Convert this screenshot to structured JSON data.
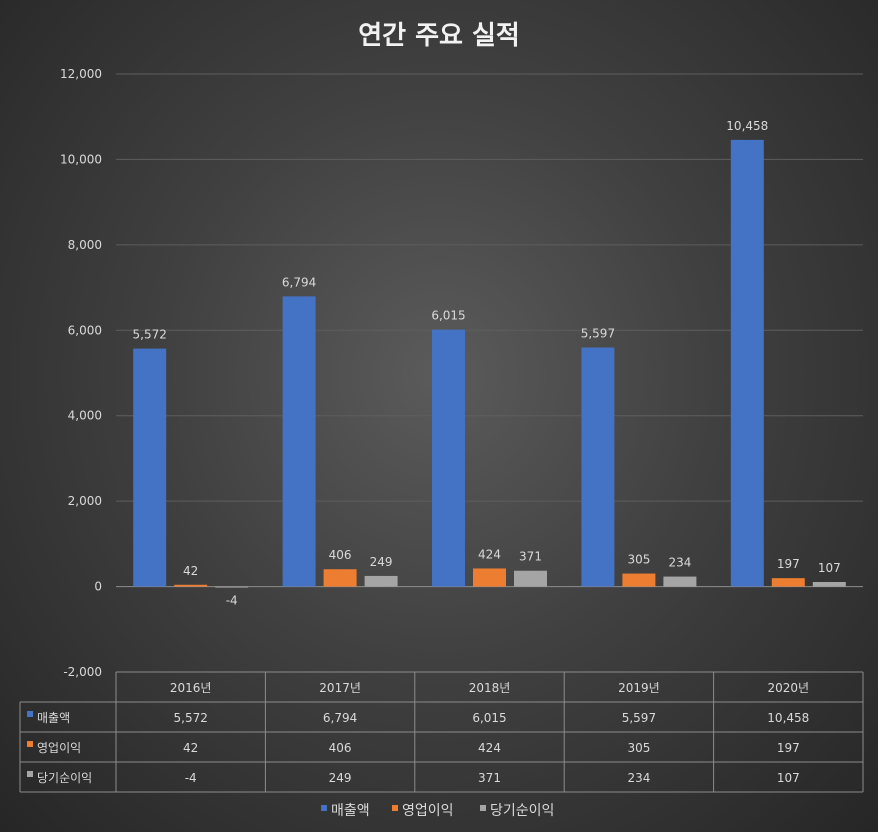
{
  "chart_data": {
    "type": "bar",
    "title": "연간 주요 실적",
    "categories": [
      "2016년",
      "2017년",
      "2018년",
      "2019년",
      "2020년"
    ],
    "series": [
      {
        "name": "매출액",
        "values": [
          5572,
          6794,
          6015,
          5597,
          10458
        ],
        "labels": [
          "5,572",
          "6,794",
          "6,015",
          "5,597",
          "10,458"
        ],
        "color": "#4472c4"
      },
      {
        "name": "영업이익",
        "values": [
          42,
          406,
          424,
          305,
          197
        ],
        "labels": [
          "42",
          "406",
          "424",
          "305",
          "197"
        ],
        "color": "#ed7d31"
      },
      {
        "name": "당기순이익",
        "values": [
          -4,
          249,
          371,
          234,
          107
        ],
        "labels": [
          "-4",
          "249",
          "371",
          "234",
          "107"
        ],
        "color": "#a5a5a5"
      }
    ],
    "yticks": [
      "12,000",
      "10,000",
      "8,000",
      "6,000",
      "4,000",
      "2,000",
      "0",
      "-2,000"
    ],
    "ylim": [
      -2000,
      12000
    ],
    "grid": true,
    "data_table": true,
    "legend": "bottom"
  }
}
